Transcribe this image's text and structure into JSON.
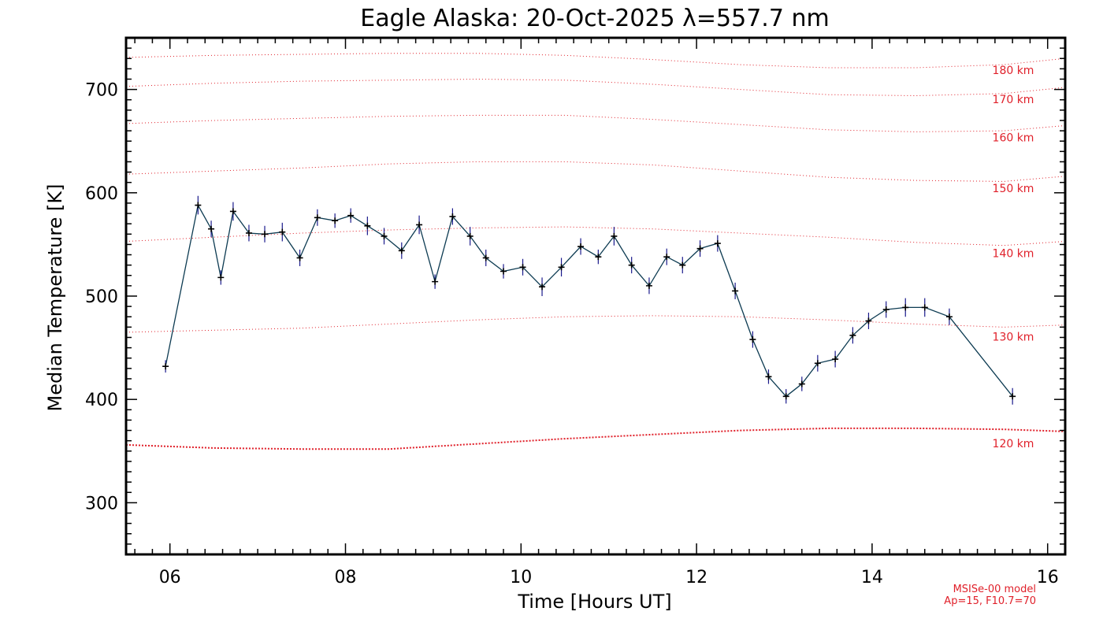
{
  "chart_data": {
    "type": "line",
    "title": "Eagle Alaska: 20-Oct-2025 λ=557.7 nm",
    "xlabel": "Time [Hours UT]",
    "ylabel": "Median Temperature [K]",
    "xlim": [
      5.5,
      16.2
    ],
    "ylim": [
      250,
      750
    ],
    "xticks": [
      6,
      8,
      10,
      12,
      14,
      16
    ],
    "xtick_labels": [
      "06",
      "08",
      "10",
      "12",
      "14",
      "16"
    ],
    "yticks": [
      300,
      400,
      500,
      600,
      700
    ],
    "ytick_labels": [
      "300",
      "400",
      "500",
      "600",
      "700"
    ],
    "series": [
      {
        "name": "Median Temperature",
        "color": "#0d3b52",
        "marker_color": "#1a1a8c",
        "x": [
          5.95,
          6.32,
          6.47,
          6.58,
          6.72,
          6.9,
          7.08,
          7.28,
          7.48,
          7.68,
          7.88,
          8.06,
          8.25,
          8.44,
          8.64,
          8.84,
          9.02,
          9.22,
          9.42,
          9.6,
          9.8,
          10.02,
          10.24,
          10.46,
          10.68,
          10.88,
          11.06,
          11.26,
          11.46,
          11.66,
          11.84,
          12.04,
          12.24,
          12.44,
          12.64,
          12.82,
          13.02,
          13.2,
          13.38,
          13.58,
          13.78,
          13.96,
          14.16,
          14.38,
          14.6,
          14.88,
          15.6
        ],
        "values": [
          432,
          588,
          565,
          518,
          582,
          561,
          560,
          562,
          537,
          576,
          573,
          578,
          568,
          558,
          544,
          569,
          514,
          577,
          558,
          537,
          524,
          528,
          509,
          528,
          548,
          538,
          558,
          530,
          510,
          538,
          530,
          546,
          551,
          505,
          458,
          422,
          403,
          415,
          435,
          439,
          462,
          476,
          487,
          489,
          489,
          480,
          403
        ],
        "errors": [
          6,
          9,
          8,
          7,
          9,
          8,
          8,
          9,
          8,
          8,
          7,
          7,
          9,
          8,
          8,
          9,
          7,
          8,
          9,
          8,
          7,
          8,
          9,
          9,
          8,
          7,
          9,
          8,
          8,
          8,
          8,
          8,
          8,
          8,
          8,
          7,
          7,
          7,
          8,
          8,
          8,
          8,
          8,
          9,
          9,
          8,
          8
        ]
      }
    ],
    "reference_curves": [
      {
        "label": "120 km",
        "x": [
          5.5,
          6.5,
          7.5,
          8.5,
          9.5,
          10.5,
          11.5,
          12.5,
          13.5,
          14.5,
          15.5,
          16.2
        ],
        "values": [
          356,
          353,
          352,
          352,
          357,
          362,
          366,
          370,
          372,
          372,
          371,
          369
        ]
      },
      {
        "label": "130 km",
        "x": [
          5.5,
          6.5,
          7.5,
          8.5,
          9.5,
          10.5,
          11.5,
          12.5,
          13.5,
          14.5,
          15.5,
          16.2
        ],
        "values": [
          465,
          467,
          469,
          473,
          477,
          480,
          481,
          480,
          477,
          473,
          470,
          472
        ]
      },
      {
        "label": "140 km",
        "x": [
          5.5,
          6.5,
          7.5,
          8.5,
          9.5,
          10.5,
          11.5,
          12.5,
          13.5,
          14.5,
          15.5,
          16.2
        ],
        "values": [
          553,
          557,
          561,
          564,
          566,
          567,
          565,
          561,
          557,
          552,
          549,
          553
        ]
      },
      {
        "label": "150 km",
        "x": [
          5.5,
          6.5,
          7.5,
          8.5,
          9.5,
          10.5,
          11.5,
          12.5,
          13.5,
          14.5,
          15.5,
          16.2
        ],
        "values": [
          618,
          621,
          624,
          628,
          630,
          630,
          627,
          621,
          615,
          612,
          611,
          616
        ]
      },
      {
        "label": "160 km",
        "x": [
          5.5,
          6.5,
          7.5,
          8.5,
          9.5,
          10.5,
          11.5,
          12.5,
          13.5,
          14.5,
          15.5,
          16.2
        ],
        "values": [
          667,
          670,
          672,
          674,
          675,
          675,
          671,
          666,
          661,
          659,
          660,
          665
        ]
      },
      {
        "label": "170 km",
        "x": [
          5.5,
          6.5,
          7.5,
          8.5,
          9.5,
          10.5,
          11.5,
          12.5,
          13.5,
          14.5,
          15.5,
          16.2
        ],
        "values": [
          703,
          706,
          708,
          709,
          710,
          709,
          705,
          700,
          695,
          694,
          696,
          702
        ]
      },
      {
        "label": "180 km",
        "x": [
          5.5,
          6.5,
          7.5,
          8.5,
          9.5,
          10.5,
          11.5,
          12.5,
          13.5,
          14.5,
          15.5,
          16.2
        ],
        "values": [
          731,
          733,
          734,
          735,
          735,
          733,
          729,
          724,
          721,
          721,
          724,
          730
        ]
      }
    ],
    "model_note": [
      "MSISe-00 model",
      "Ap=15, F10.7=70"
    ],
    "reference_color": "#e0202a",
    "grid": false
  }
}
